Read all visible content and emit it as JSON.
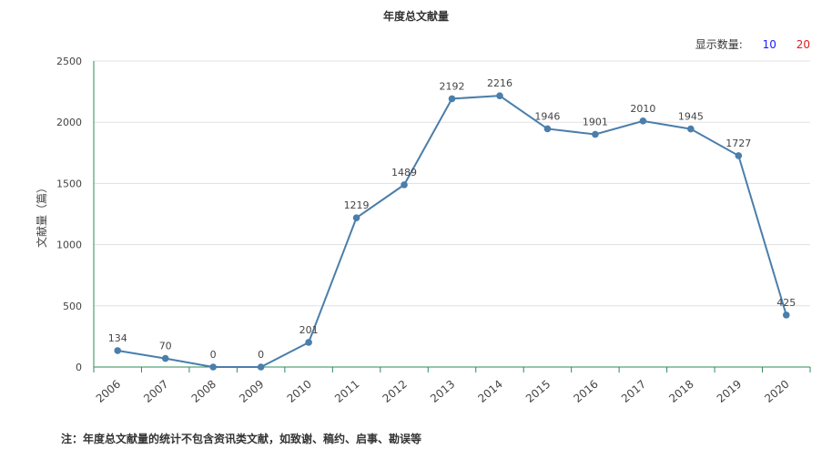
{
  "title": "年度总文献量",
  "display_count": {
    "label": "显示数量:",
    "options": [
      "10",
      "20"
    ]
  },
  "note": "注：年度总文献量的统计不包含资讯类文献，如致谢、稿约、启事、勘误等",
  "colors": {
    "line": "#4a7eab",
    "axis": "#2e8b57",
    "grid": "#e0e0e0"
  },
  "chart_data": {
    "type": "line",
    "title": "年度总文献量",
    "ylabel": "文献量（篇）",
    "xlabel": "",
    "categories": [
      "2006",
      "2007",
      "2008",
      "2009",
      "2010",
      "2011",
      "2012",
      "2013",
      "2014",
      "2015",
      "2016",
      "2017",
      "2018",
      "2019",
      "2020"
    ],
    "series": [
      {
        "values": [
          134,
          70,
          0,
          0,
          201,
          1219,
          1489,
          2192,
          2216,
          1946,
          1901,
          2010,
          1945,
          1727,
          425
        ]
      }
    ],
    "ylim": [
      0,
      2500
    ],
    "yticks": [
      0,
      500,
      1000,
      1500,
      2000,
      2500
    ],
    "grid": true,
    "data_labels": true
  }
}
